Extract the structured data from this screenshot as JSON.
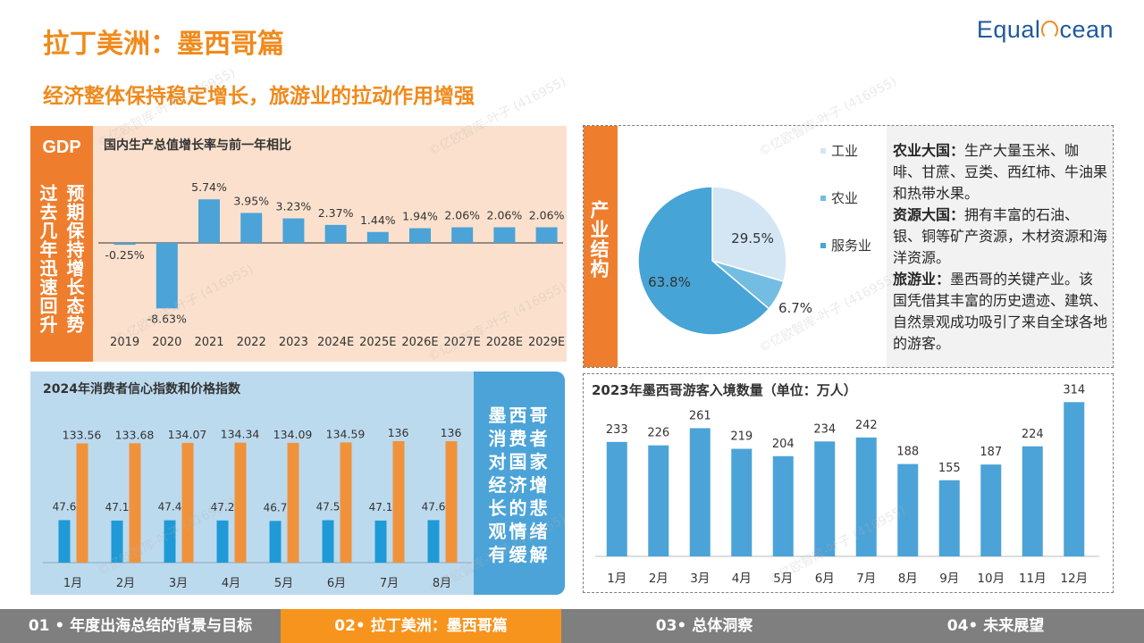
{
  "header": {
    "title": "拉丁美洲：墨西哥篇",
    "subtitle": "经济整体保持稳定增长，旅游业的拉动作用增强",
    "logo_left": "Equal",
    "logo_right": "cean"
  },
  "gdp_panel": {
    "tag": "GDP",
    "vertical_right": "预期保持增长态势",
    "vertical_left": "过去几年迅速回升"
  },
  "industry_panel": {
    "side_label": "产业结构",
    "paragraphs": [
      {
        "bold": "农业大国：",
        "text": "生产大量玉米、咖啡、甘蔗、豆类、西红柿、牛油果和热带水果。"
      },
      {
        "bold": "资源大国：",
        "text": "拥有丰富的石油、银、铜等矿产资源，木材资源和海洋资源。"
      },
      {
        "bold": "旅游业：",
        "text": "墨西哥的关键产业。该国凭借其丰富的历史遗迹、建筑、自然景观成功吸引了来自全球各地的游客。"
      }
    ]
  },
  "consumer_panel": {
    "side_text": "墨西哥消费者对国家经济增长的悲观情绪有缓解"
  },
  "watermark": "©亿欧智库-叶子 (416955)",
  "nav": {
    "items": [
      {
        "label": "01 • 年度出海总结的背景与目标",
        "active": false
      },
      {
        "label": "02• 拉丁美洲：墨西哥篇",
        "active": true
      },
      {
        "label": "03• 总体洞察",
        "active": false
      },
      {
        "label": "04• 未来展望",
        "active": false
      }
    ]
  },
  "colors": {
    "accent": "#ee7e2d",
    "bar_blue": "#4ba3d8",
    "bar_blue_dark": "#1f9ad6",
    "bar_orange": "#f0923b",
    "pie_light": "#d4e6f4",
    "pie_mid": "#74bde2",
    "pie_dark": "#47a4d6"
  },
  "chart_data": [
    {
      "id": "gdp",
      "type": "bar",
      "title": "国内生产总值增长率与前一年相比",
      "categories": [
        "2019",
        "2020",
        "2021",
        "2022",
        "2023",
        "2024E",
        "2025E",
        "2026E",
        "2027E",
        "2028E",
        "2029E"
      ],
      "values": [
        -0.25,
        -8.63,
        5.74,
        3.95,
        3.23,
        2.37,
        1.44,
        1.94,
        2.06,
        2.06,
        2.06
      ],
      "labels": [
        "-0.25%",
        "-8.63%",
        "5.74%",
        "3.95%",
        "3.23%",
        "2.37%",
        "1.44%",
        "1.94%",
        "2.06%",
        "2.06%",
        "2.06%"
      ],
      "ylim": [
        -9,
        6
      ]
    },
    {
      "id": "industry",
      "type": "pie",
      "slices": [
        {
          "name": "工业",
          "value": 29.5,
          "label": "29.5%"
        },
        {
          "name": "农业",
          "value": 6.7,
          "label": "6.7%"
        },
        {
          "name": "服务业",
          "value": 63.8,
          "label": "63.8%"
        }
      ],
      "legend": "right"
    },
    {
      "id": "consumer",
      "type": "bar",
      "title": "2024年消费者信心指数和价格指数",
      "categories": [
        "1月",
        "2月",
        "3月",
        "4月",
        "5月",
        "6月",
        "7月",
        "8月"
      ],
      "series": [
        {
          "values": [
            47.6,
            47.1,
            47.4,
            47.2,
            46.7,
            47.5,
            47.1,
            47.6
          ],
          "labels": [
            "47.6",
            "47.1",
            "47.4",
            "47.2",
            "46.7",
            "47.5",
            "47.1",
            "47.6"
          ]
        },
        {
          "values": [
            133.56,
            133.68,
            134.07,
            134.34,
            134.09,
            134.59,
            136,
            136
          ],
          "labels": [
            "133.56",
            "133.68",
            "134.07",
            "134.34",
            "134.09",
            "134.59",
            "136",
            "136"
          ]
        }
      ],
      "ylim": [
        0,
        140
      ]
    },
    {
      "id": "tourism",
      "type": "bar",
      "title": "2023年墨西哥游客入境数量（单位：万人）",
      "categories": [
        "1月",
        "2月",
        "3月",
        "4月",
        "5月",
        "6月",
        "7月",
        "8月",
        "9月",
        "10月",
        "11月",
        "12月"
      ],
      "values": [
        233,
        226,
        261,
        219,
        204,
        234,
        242,
        188,
        155,
        187,
        224,
        314
      ],
      "ylim": [
        0,
        330
      ]
    }
  ]
}
